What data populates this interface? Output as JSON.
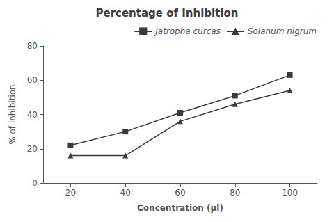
{
  "chart_data": {
    "type": "line",
    "title": "Percentage of Inhibition",
    "xlabel": "Concentration (μl)",
    "ylabel": "% of inhibition",
    "x": [
      20,
      40,
      60,
      80,
      100
    ],
    "series": [
      {
        "name": "Jatropha curcas",
        "color": "#3a3a3a",
        "marker": "square",
        "values": [
          22,
          30,
          41,
          51,
          63
        ]
      },
      {
        "name": "Solanum nigrum",
        "color": "#3a3a3a",
        "marker": "triangle",
        "values": [
          16,
          16,
          36,
          46,
          54
        ]
      }
    ],
    "xlim": [
      10,
      110
    ],
    "xticks": [
      20,
      40,
      60,
      80,
      100
    ],
    "ylim": [
      0,
      80
    ],
    "yticks": [
      0,
      20,
      40,
      60,
      80
    ],
    "grid": false,
    "legend": "upper right"
  }
}
